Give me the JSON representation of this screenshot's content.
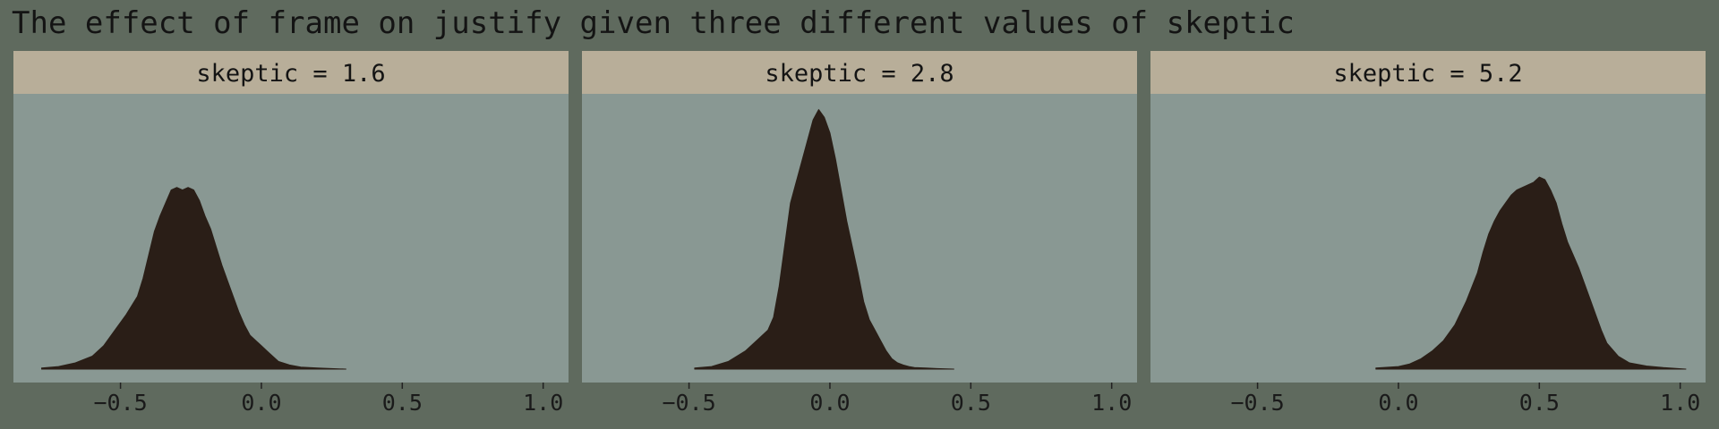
{
  "title": "The effect of frame on justify given three different values of skeptic",
  "colors": {
    "background": "#5f6a5e",
    "panel": "#899893",
    "strip": "#b8ae99",
    "density": "#2a1e17"
  },
  "chart_data": {
    "type": "area",
    "subtype": "density",
    "title": "The effect of frame on justify given three different values of skeptic",
    "xlabel": "",
    "ylabel": "",
    "xlim": [
      -0.88,
      1.09
    ],
    "ylim": [
      0,
      5.2
    ],
    "xticks": [
      -0.5,
      0.0,
      0.5,
      1.0
    ],
    "xtick_labels": [
      "−0.5",
      "0.0",
      "0.5",
      "1.0"
    ],
    "grid": false,
    "legend": "none",
    "panels": [
      {
        "strip_label": "skeptic = 1.6",
        "x": [
          -0.78,
          -0.72,
          -0.66,
          -0.6,
          -0.56,
          -0.52,
          -0.48,
          -0.44,
          -0.42,
          -0.4,
          -0.38,
          -0.36,
          -0.34,
          -0.32,
          -0.3,
          -0.28,
          -0.26,
          -0.24,
          -0.22,
          -0.2,
          -0.18,
          -0.16,
          -0.14,
          -0.12,
          -0.1,
          -0.08,
          -0.06,
          -0.04,
          -0.02,
          0.0,
          0.02,
          0.04,
          0.06,
          0.1,
          0.14,
          0.2,
          0.3
        ],
        "y": [
          0.02,
          0.05,
          0.12,
          0.25,
          0.45,
          0.75,
          1.05,
          1.4,
          1.75,
          2.2,
          2.65,
          2.95,
          3.2,
          3.45,
          3.5,
          3.45,
          3.5,
          3.45,
          3.25,
          2.95,
          2.7,
          2.35,
          2.0,
          1.7,
          1.4,
          1.1,
          0.85,
          0.65,
          0.55,
          0.45,
          0.35,
          0.25,
          0.15,
          0.08,
          0.04,
          0.02,
          0.0
        ]
      },
      {
        "strip_label": "skeptic = 2.8",
        "x": [
          -0.48,
          -0.42,
          -0.36,
          -0.3,
          -0.26,
          -0.22,
          -0.2,
          -0.18,
          -0.16,
          -0.14,
          -0.12,
          -0.1,
          -0.08,
          -0.06,
          -0.04,
          -0.02,
          0.0,
          0.02,
          0.04,
          0.06,
          0.08,
          0.1,
          0.12,
          0.14,
          0.16,
          0.18,
          0.2,
          0.22,
          0.24,
          0.26,
          0.28,
          0.3,
          0.34,
          0.38,
          0.44
        ],
        "y": [
          0.02,
          0.05,
          0.15,
          0.35,
          0.55,
          0.75,
          1.0,
          1.6,
          2.4,
          3.2,
          3.6,
          4.0,
          4.4,
          4.8,
          5.0,
          4.85,
          4.55,
          4.05,
          3.45,
          2.85,
          2.35,
          1.85,
          1.3,
          0.95,
          0.75,
          0.55,
          0.35,
          0.2,
          0.12,
          0.08,
          0.05,
          0.03,
          0.02,
          0.01,
          0.0
        ]
      },
      {
        "strip_label": "skeptic = 5.2",
        "x": [
          -0.08,
          0.0,
          0.04,
          0.08,
          0.12,
          0.16,
          0.2,
          0.24,
          0.28,
          0.3,
          0.32,
          0.34,
          0.36,
          0.38,
          0.4,
          0.42,
          0.44,
          0.46,
          0.48,
          0.5,
          0.52,
          0.54,
          0.56,
          0.58,
          0.6,
          0.62,
          0.64,
          0.66,
          0.68,
          0.7,
          0.72,
          0.74,
          0.78,
          0.82,
          0.88,
          0.94,
          1.02
        ],
        "y": [
          0.02,
          0.05,
          0.1,
          0.2,
          0.35,
          0.55,
          0.85,
          1.3,
          1.85,
          2.25,
          2.6,
          2.85,
          3.05,
          3.2,
          3.35,
          3.45,
          3.5,
          3.55,
          3.6,
          3.7,
          3.65,
          3.45,
          3.2,
          2.8,
          2.45,
          2.2,
          1.95,
          1.65,
          1.35,
          1.05,
          0.75,
          0.5,
          0.25,
          0.12,
          0.06,
          0.03,
          0.0
        ]
      }
    ]
  }
}
